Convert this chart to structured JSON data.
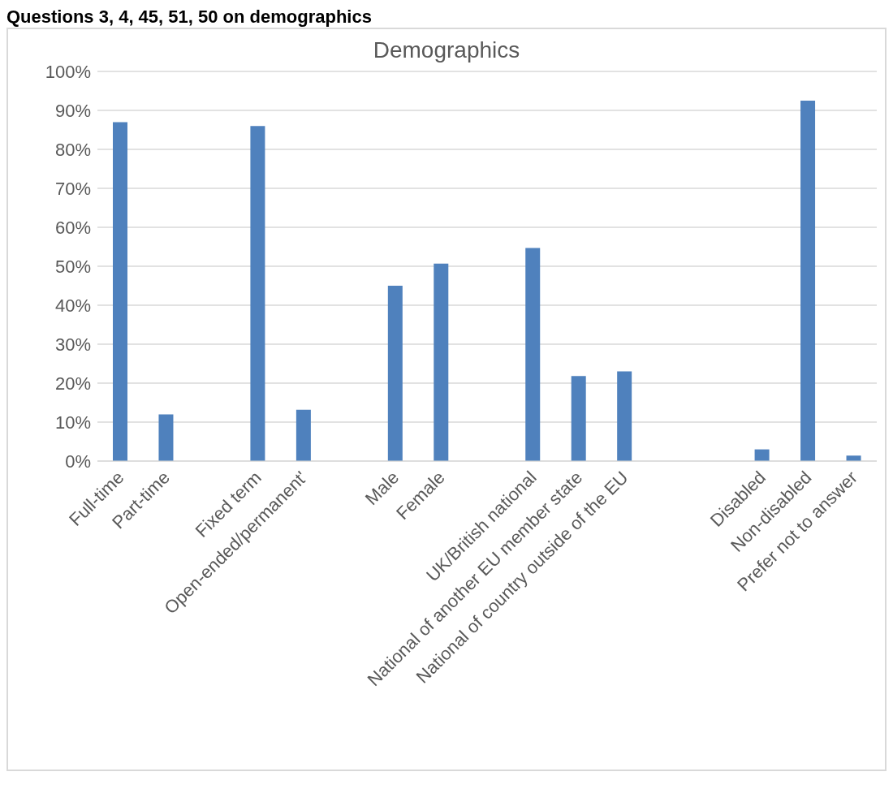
{
  "chart_data": {
    "type": "bar",
    "title": "Demographics",
    "annotations": [
      "Questions 3, 4, 45, 51, 50 on demographics"
    ],
    "categories": [
      "Full-time",
      "Part-time",
      null,
      "Fixed term",
      "Open-ended/permanent'",
      null,
      "Male",
      "Female",
      null,
      "UK/British national",
      "National of another EU member state",
      "National of country outside of the EU",
      null,
      null,
      "Disabled",
      "Non-disabled",
      "Prefer not to answer"
    ],
    "values": [
      87,
      12,
      null,
      86,
      13.2,
      null,
      45,
      50.7,
      null,
      54.7,
      21.8,
      23,
      null,
      null,
      3,
      92.5,
      1.4
    ],
    "color": "#4f81bd",
    "ylim": [
      0,
      100
    ],
    "yticks": [
      {
        "value": 0,
        "label": "0%"
      },
      {
        "value": 10,
        "label": "10%"
      },
      {
        "value": 20,
        "label": "20%"
      },
      {
        "value": 30,
        "label": "30%"
      },
      {
        "value": 40,
        "label": "40%"
      },
      {
        "value": 50,
        "label": "50%"
      },
      {
        "value": 60,
        "label": "60%"
      },
      {
        "value": 70,
        "label": "70%"
      },
      {
        "value": 80,
        "label": "80%"
      },
      {
        "value": 90,
        "label": "90%"
      },
      {
        "value": 100,
        "label": "100%"
      }
    ],
    "grid": "y"
  }
}
